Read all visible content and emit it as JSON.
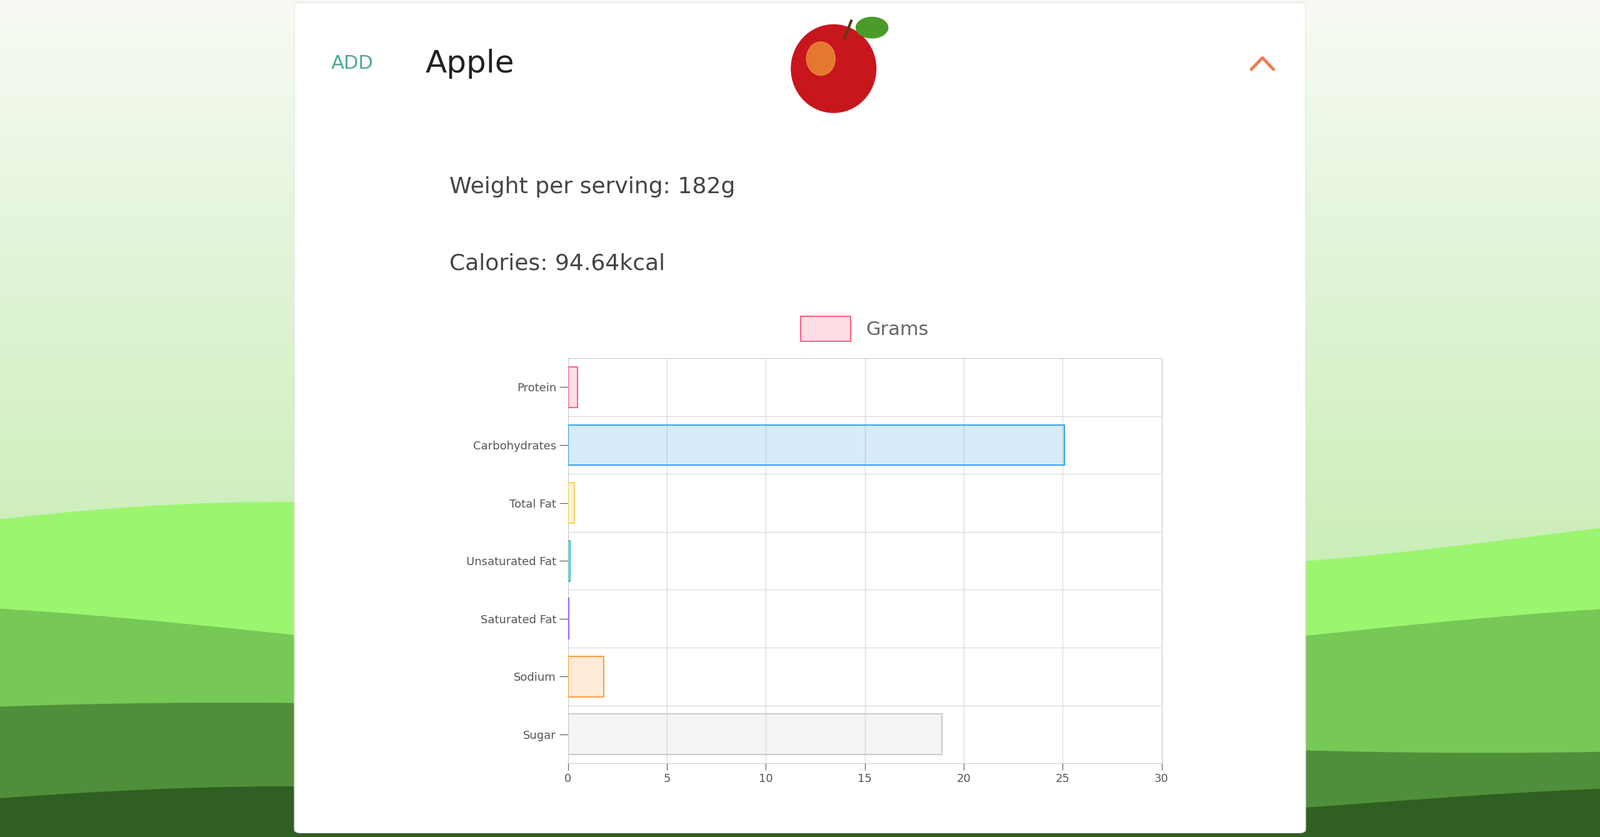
{
  "header": {
    "button": "ADD",
    "title": "Apple"
  },
  "details": [
    "Weight per serving: 182g",
    "Calories: 94.64kcal"
  ],
  "chart_data": {
    "type": "bar",
    "orientation": "horizontal",
    "categories": [
      "Protein",
      "Carbohydrates",
      "Total Fat",
      "Unsaturated Fat",
      "Saturated Fat",
      "Sodium",
      "Sugar"
    ],
    "series": [
      {
        "name": "Grams",
        "colors": [
          "#ff6384",
          "#36a2eb",
          "#ffce56",
          "#4bc0c0",
          "#9966ff",
          "#ff9f40",
          "#c9cbcf"
        ],
        "values": [
          0.47,
          25.1,
          0.31,
          0.1,
          0.05,
          1.8,
          18.9
        ]
      }
    ],
    "xlim": [
      0,
      30
    ],
    "xticks": [
      0,
      5,
      10,
      15,
      20,
      25,
      30
    ],
    "grid": true,
    "legend": "top"
  }
}
